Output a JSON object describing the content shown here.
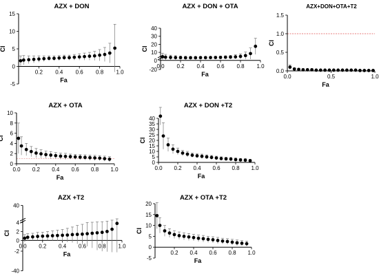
{
  "chart_data": [
    {
      "type": "scatter",
      "title": "AZX + DON",
      "xlabel": "Fa",
      "ylabel": "CI",
      "xlim": [
        0,
        1.0
      ],
      "ylim": [
        -5,
        15
      ],
      "xticks": [
        0.2,
        0.4,
        0.6,
        0.8,
        1.0
      ],
      "yticks": [
        -5,
        0,
        5,
        10,
        15
      ],
      "xtick_labels": [
        "0.2",
        "0.4",
        "0.6",
        "0.8",
        "1.0"
      ],
      "ytick_labels": [
        "-5",
        "0",
        "5",
        "10",
        "15"
      ],
      "axis_break": "",
      "reference_line": null,
      "x": [
        0.02,
        0.05,
        0.1,
        0.15,
        0.2,
        0.25,
        0.3,
        0.35,
        0.4,
        0.45,
        0.5,
        0.55,
        0.6,
        0.65,
        0.7,
        0.75,
        0.8,
        0.85,
        0.9,
        0.95
      ],
      "y": [
        1.6,
        1.8,
        1.9,
        2.0,
        2.1,
        2.2,
        2.3,
        2.3,
        2.4,
        2.5,
        2.5,
        2.6,
        2.7,
        2.8,
        2.9,
        3.0,
        3.2,
        3.4,
        3.8,
        5.2
      ],
      "err": [
        1.4,
        1.3,
        1.1,
        1.0,
        0.9,
        0.8,
        0.7,
        0.7,
        0.7,
        0.7,
        0.7,
        0.8,
        0.9,
        1.0,
        1.1,
        1.3,
        1.6,
        2.0,
        2.8,
        6.8
      ]
    },
    {
      "type": "scatter",
      "title": "AZX + DON + OTA",
      "xlabel": "Fa",
      "ylabel": "CI",
      "xlim": [
        0,
        1.0
      ],
      "ylim": [
        -20,
        40
      ],
      "xticks": [
        0,
        0.2,
        0.4,
        0.6,
        0.8,
        1.0
      ],
      "yticks": [
        -20,
        0,
        10,
        20,
        30,
        40
      ],
      "xtick_labels": [
        "0.0",
        "0.2",
        "0.4",
        "0.6",
        "0.8",
        "1.0"
      ],
      "ytick_labels": [
        "-20",
        "0",
        "10",
        "20",
        "30",
        "40"
      ],
      "axis_break": "y",
      "reference_line": null,
      "x": [
        0.02,
        0.05,
        0.1,
        0.15,
        0.2,
        0.25,
        0.3,
        0.35,
        0.4,
        0.45,
        0.5,
        0.55,
        0.6,
        0.65,
        0.7,
        0.75,
        0.8,
        0.85,
        0.9,
        0.95
      ],
      "y": [
        4.5,
        4.0,
        3.7,
        3.5,
        3.4,
        3.3,
        3.3,
        3.3,
        3.4,
        3.4,
        3.5,
        3.6,
        3.7,
        3.9,
        4.1,
        4.4,
        5.0,
        6.0,
        8.5,
        17.5
      ],
      "err": [
        4.5,
        3.5,
        2.8,
        2.4,
        2.0,
        1.8,
        1.7,
        1.6,
        1.5,
        1.5,
        1.5,
        1.6,
        1.7,
        1.9,
        2.2,
        2.6,
        3.2,
        4.5,
        7.0,
        10.0
      ]
    },
    {
      "type": "scatter",
      "title": "AZX+DON+OTA+T2",
      "xlabel": "Fa",
      "ylabel": "CI",
      "xlim": [
        0,
        1.0
      ],
      "ylim": [
        0,
        1.5
      ],
      "xticks": [
        0,
        0.5,
        1.0
      ],
      "yticks": [
        0,
        0.5,
        1.0,
        1.5
      ],
      "xtick_labels": [
        "0.0",
        "0.5",
        "1.0"
      ],
      "ytick_labels": [
        "0.0",
        "0.5",
        "1.0",
        "1.5"
      ],
      "axis_break": "",
      "reference_line": 1.0,
      "reference_color": "#e05050",
      "x": [
        0.03,
        0.08,
        0.13,
        0.18,
        0.23,
        0.28,
        0.33,
        0.38,
        0.43,
        0.48,
        0.53,
        0.58,
        0.63,
        0.68,
        0.73,
        0.78,
        0.83,
        0.88,
        0.93,
        0.98
      ],
      "y": [
        0.1,
        0.05,
        0.04,
        0.03,
        0.03,
        0.03,
        0.02,
        0.02,
        0.02,
        0.02,
        0.02,
        0.02,
        0.02,
        0.02,
        0.02,
        0.02,
        0.01,
        0.01,
        0.01,
        0.01
      ],
      "err": [
        0.06,
        0.03,
        0.02,
        0.02,
        0.01,
        0.01,
        0.01,
        0.01,
        0.01,
        0.01,
        0.01,
        0.01,
        0.01,
        0.01,
        0.01,
        0.01,
        0.01,
        0.01,
        0.01,
        0.01
      ]
    },
    {
      "type": "scatter",
      "title": "AZX + OTA",
      "xlabel": "Fa",
      "ylabel": "CI",
      "xlim": [
        0,
        1.0
      ],
      "ylim": [
        0,
        10
      ],
      "xticks": [
        0,
        0.2,
        0.4,
        0.6,
        0.8,
        1.0
      ],
      "yticks": [
        0,
        2,
        4,
        6,
        8,
        10
      ],
      "xtick_labels": [
        "0.0",
        "0.2",
        "0.4",
        "0.6",
        "0.8",
        "1.0"
      ],
      "ytick_labels": [
        "0",
        "2",
        "4",
        "6",
        "8",
        "10"
      ],
      "axis_break": "",
      "reference_line": 1.0,
      "reference_color": "#e8a0a0",
      "x": [
        0.02,
        0.05,
        0.1,
        0.15,
        0.2,
        0.25,
        0.3,
        0.35,
        0.4,
        0.45,
        0.5,
        0.55,
        0.6,
        0.65,
        0.7,
        0.75,
        0.8,
        0.85,
        0.9,
        0.95
      ],
      "y": [
        5.0,
        3.5,
        2.8,
        2.4,
        2.1,
        1.95,
        1.8,
        1.7,
        1.6,
        1.5,
        1.45,
        1.4,
        1.35,
        1.3,
        1.25,
        1.2,
        1.15,
        1.1,
        1.0,
        0.9
      ],
      "err": [
        3.0,
        1.8,
        1.2,
        1.0,
        0.9,
        0.8,
        0.7,
        0.7,
        0.6,
        0.6,
        0.6,
        0.5,
        0.5,
        0.5,
        0.5,
        0.5,
        0.5,
        0.5,
        0.5,
        0.5
      ]
    },
    {
      "type": "scatter",
      "title": "AZX + DON +T2",
      "xlabel": "Fa",
      "ylabel": "CI",
      "xlim": [
        0,
        1.0
      ],
      "ylim": [
        0,
        40
      ],
      "xticks": [
        0,
        0.2,
        0.4,
        0.6,
        0.8,
        1.0
      ],
      "yticks": [
        0,
        5,
        10,
        15,
        20,
        25,
        30,
        35,
        40
      ],
      "xtick_labels": [
        "0.0",
        "0.2",
        "0.4",
        "0.6",
        "0.8",
        "1.0"
      ],
      "ytick_labels": [
        "0",
        "5",
        "10",
        "15",
        "20",
        "25",
        "30",
        "35",
        "40"
      ],
      "axis_break": "",
      "reference_line": null,
      "x": [
        0.02,
        0.05,
        0.1,
        0.15,
        0.2,
        0.25,
        0.3,
        0.35,
        0.4,
        0.45,
        0.5,
        0.55,
        0.6,
        0.65,
        0.7,
        0.75,
        0.8,
        0.85,
        0.9,
        0.95
      ],
      "y": [
        42,
        24,
        16,
        12,
        10,
        8.5,
        7.5,
        6.5,
        6,
        5.5,
        5,
        4.5,
        4,
        3.5,
        3.2,
        3,
        2.5,
        2.2,
        2,
        1.5
      ],
      "err": [
        8,
        12,
        6,
        4,
        3,
        2.5,
        2.5,
        2,
        2,
        2,
        1.8,
        1.8,
        1.6,
        1.6,
        1.5,
        1.5,
        1.5,
        1.4,
        1.4,
        1.4
      ]
    },
    {
      "type": "scatter",
      "title": "AZX +T2",
      "xlabel": "Fa",
      "ylabel": "CI",
      "xlim": [
        0,
        1.0
      ],
      "ylim": [
        -40,
        40
      ],
      "xticks": [
        0,
        0.2,
        0.4,
        0.6,
        0.8,
        1.0
      ],
      "yticks": [
        -40,
        -2,
        0,
        2,
        4,
        40
      ],
      "xtick_labels": [
        "0.0",
        "0.2",
        "0.4",
        "0.6",
        "0.8",
        "1.0"
      ],
      "ytick_labels": [
        "-40",
        "-2",
        "0",
        "2",
        "4",
        "40"
      ],
      "axis_break": "y",
      "reference_line": null,
      "x": [
        0.02,
        0.05,
        0.1,
        0.15,
        0.2,
        0.25,
        0.3,
        0.35,
        0.4,
        0.45,
        0.5,
        0.55,
        0.6,
        0.65,
        0.7,
        0.75,
        0.8,
        0.85,
        0.9,
        0.95
      ],
      "y": [
        0.5,
        0.7,
        0.8,
        0.9,
        0.95,
        1.0,
        1.05,
        1.1,
        1.15,
        1.2,
        1.3,
        1.35,
        1.4,
        1.5,
        1.6,
        1.7,
        1.8,
        2.0,
        2.5,
        3.8
      ],
      "err": [
        0.8,
        0.8,
        0.8,
        0.9,
        0.9,
        1.0,
        1.1,
        1.2,
        1.3,
        1.5,
        1.7,
        2.0,
        2.2,
        2.6,
        3.0,
        3.5,
        4.0,
        5.0,
        6.5,
        8.0
      ]
    },
    {
      "type": "scatter",
      "title": "AZX + OTA +T2",
      "xlabel": "Fa",
      "ylabel": "CI",
      "xlim": [
        0,
        1.0
      ],
      "ylim": [
        -5,
        20
      ],
      "xticks": [
        0.2,
        0.4,
        0.6,
        0.8,
        1.0
      ],
      "yticks": [
        -5,
        0,
        5,
        10,
        15,
        20
      ],
      "xtick_labels": [
        "0.2",
        "0.4",
        "0.6",
        "0.8",
        "1.0"
      ],
      "ytick_labels": [
        "-5",
        "0",
        "5",
        "10",
        "15",
        "20"
      ],
      "axis_break": "",
      "reference_line": null,
      "x": [
        0.02,
        0.05,
        0.1,
        0.15,
        0.2,
        0.25,
        0.3,
        0.35,
        0.4,
        0.45,
        0.5,
        0.55,
        0.6,
        0.65,
        0.7,
        0.75,
        0.8,
        0.85,
        0.9,
        0.95
      ],
      "y": [
        14.5,
        10,
        7.5,
        6.5,
        5.8,
        5.3,
        5.0,
        4.7,
        4.4,
        4.1,
        3.9,
        3.6,
        3.4,
        3.1,
        2.8,
        2.6,
        2.3,
        2.0,
        1.8,
        1.6
      ],
      "err": [
        6,
        3.5,
        2.5,
        2,
        1.8,
        1.7,
        1.6,
        1.6,
        1.5,
        1.5,
        1.5,
        1.4,
        1.4,
        1.4,
        1.3,
        1.3,
        1.3,
        1.3,
        1.2,
        1.2
      ]
    }
  ]
}
